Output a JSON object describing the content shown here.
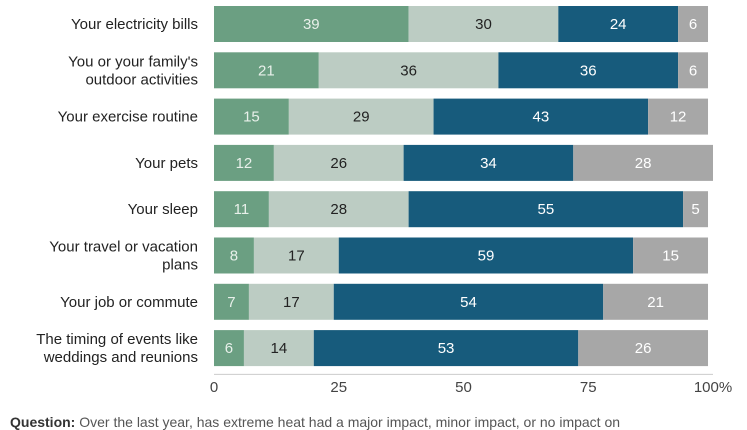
{
  "chart_data": {
    "type": "bar",
    "orientation": "horizontal",
    "stacked": true,
    "categories": [
      [
        "Your electricity bills"
      ],
      [
        "You or your family's",
        "outdoor activities"
      ],
      [
        "Your exercise routine"
      ],
      [
        "Your pets"
      ],
      [
        "Your sleep"
      ],
      [
        "Your travel or vacation",
        "plans"
      ],
      [
        "Your job or commute"
      ],
      [
        "The timing of events like",
        "weddings and reunions"
      ]
    ],
    "series": [
      {
        "values": [
          39,
          21,
          15,
          12,
          11,
          8,
          7,
          6
        ],
        "color": "#6b9f82",
        "label_color": "#e8f0ea"
      },
      {
        "values": [
          30,
          36,
          29,
          26,
          28,
          17,
          17,
          14
        ],
        "color": "#bcccc3",
        "label_color": "#222222"
      },
      {
        "values": [
          24,
          36,
          43,
          34,
          55,
          59,
          54,
          53
        ],
        "color": "#175b7c",
        "label_color": "#ffffff"
      },
      {
        "values": [
          6,
          6,
          12,
          28,
          5,
          15,
          21,
          26
        ],
        "color": "#a7a7a7",
        "label_color": "#ffffff"
      }
    ],
    "x_ticks": [
      "0",
      "25",
      "50",
      "75",
      "100%"
    ],
    "xlim": [
      0,
      100
    ],
    "grid": false,
    "legend": "none"
  },
  "footnote": {
    "label": "Question:",
    "text": "Over the last year, has extreme heat had a major impact, minor impact, or no impact on"
  }
}
